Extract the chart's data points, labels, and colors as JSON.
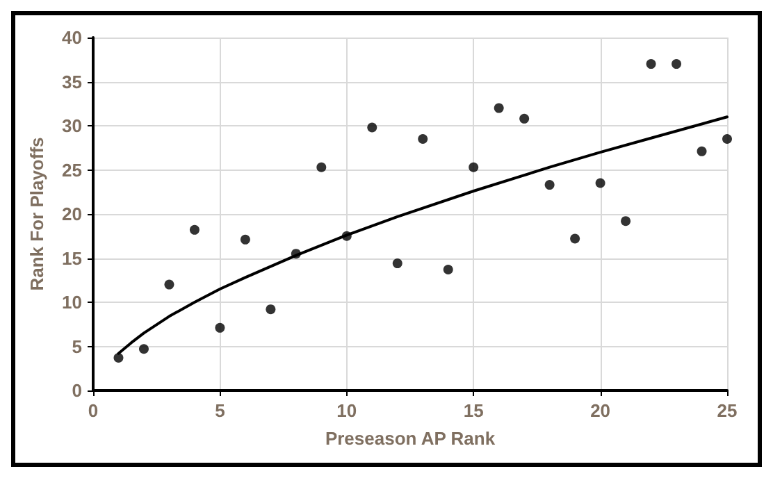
{
  "chart_data": {
    "type": "scatter",
    "xlabel": "Preseason AP Rank",
    "ylabel": "Rank For Playoffs",
    "xlim": [
      0,
      25
    ],
    "xticks": [
      0,
      5,
      10,
      15,
      20,
      25
    ],
    "ylim": [
      0,
      40
    ],
    "yticks": [
      0,
      5,
      10,
      15,
      20,
      25,
      30,
      35,
      40
    ],
    "grid": true,
    "marker": "circle",
    "series": [
      {
        "color": "#000000",
        "x": [
          1,
          2,
          3,
          4,
          5,
          6,
          7,
          8,
          9,
          10,
          11,
          12,
          13,
          14,
          15,
          16,
          17,
          18,
          19,
          20,
          21,
          22,
          23,
          24,
          25
        ],
        "values": [
          3.7,
          4.7,
          12,
          18.2,
          7.1,
          17.1,
          9.2,
          15.5,
          25.3,
          17.5,
          29.8,
          14.4,
          28.5,
          13.7,
          25.3,
          32,
          30.8,
          23.3,
          17.2,
          23.5,
          19.2,
          37,
          37,
          27.1,
          28.5
        ]
      },
      {
        "type": "line",
        "color": "#000000",
        "marker": "none",
        "line_style": "solid",
        "x": [
          1,
          1.5,
          2,
          3,
          4,
          5,
          6,
          8,
          10,
          12,
          15,
          18,
          20,
          22,
          25
        ],
        "values": [
          4.2,
          5.4,
          6.5,
          8.4,
          10,
          11.5,
          12.8,
          15.3,
          17.6,
          19.7,
          22.6,
          25.3,
          27,
          28.6,
          31
        ]
      }
    ]
  }
}
